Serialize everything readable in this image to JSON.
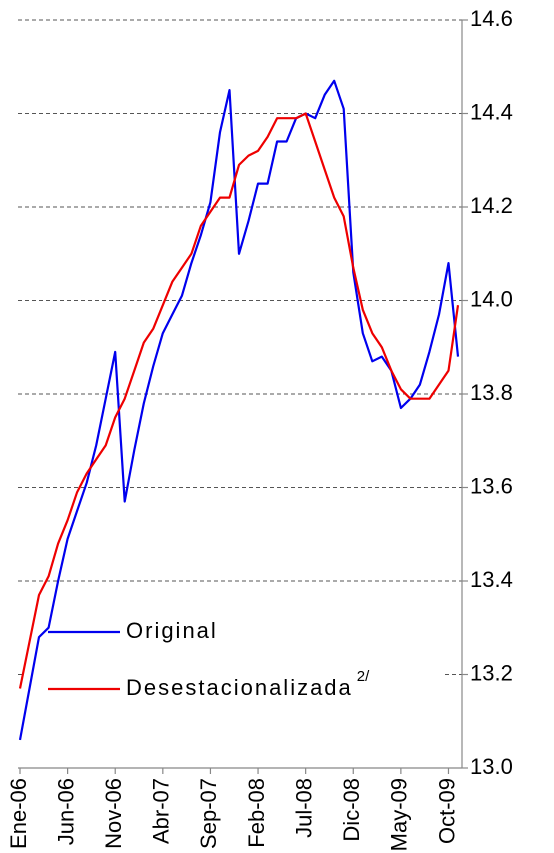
{
  "chart_data": {
    "type": "line",
    "categories": [
      "Ene-06",
      null,
      null,
      null,
      null,
      "Jun-06",
      null,
      null,
      null,
      null,
      "Nov-06",
      null,
      null,
      null,
      null,
      "Abr-07",
      null,
      null,
      null,
      null,
      "Sep-07",
      null,
      null,
      null,
      null,
      "Feb-08",
      null,
      null,
      null,
      null,
      "Jul-08",
      null,
      null,
      null,
      null,
      "Dic-08",
      null,
      null,
      null,
      null,
      "May-09",
      null,
      null,
      null,
      null,
      "Oct-09",
      null
    ],
    "series": [
      {
        "name": "Original",
        "color": "#0000ee",
        "values": [
          13.06,
          13.17,
          13.28,
          13.3,
          13.4,
          13.49,
          13.55,
          13.61,
          13.69,
          13.79,
          13.89,
          13.57,
          13.68,
          13.78,
          13.86,
          13.93,
          13.97,
          14.01,
          14.08,
          14.14,
          14.21,
          14.36,
          14.45,
          14.1,
          14.17,
          14.25,
          14.25,
          14.34,
          14.34,
          14.39,
          14.4,
          14.39,
          14.44,
          14.47,
          14.41,
          14.06,
          13.93,
          13.87,
          13.88,
          13.85,
          13.77,
          13.79,
          13.82,
          13.89,
          13.97,
          14.08,
          13.88
        ]
      },
      {
        "name": "Desestacionalizada",
        "footnote": "2/",
        "color": "#ee0000",
        "values": [
          13.17,
          13.27,
          13.37,
          13.41,
          13.48,
          13.53,
          13.59,
          13.63,
          13.66,
          13.69,
          13.75,
          13.79,
          13.85,
          13.91,
          13.94,
          13.99,
          14.04,
          14.07,
          14.1,
          14.16,
          14.19,
          14.22,
          14.22,
          14.29,
          14.31,
          14.32,
          14.35,
          14.39,
          14.39,
          14.39,
          14.4,
          14.34,
          14.28,
          14.22,
          14.18,
          14.07,
          13.98,
          13.93,
          13.9,
          13.85,
          13.81,
          13.79,
          13.79,
          13.79,
          13.82,
          13.85,
          13.99
        ]
      }
    ],
    "ylim": [
      13.0,
      14.6
    ],
    "yticks": [
      {
        "value": 13.0,
        "label": "13.0"
      },
      13.2,
      13.4,
      13.6,
      13.8,
      {
        "value": 14.0,
        "label": "14.0"
      },
      14.2,
      14.4,
      14.6
    ],
    "grid": true,
    "y_axis_side": "right",
    "legend": "lower left"
  }
}
